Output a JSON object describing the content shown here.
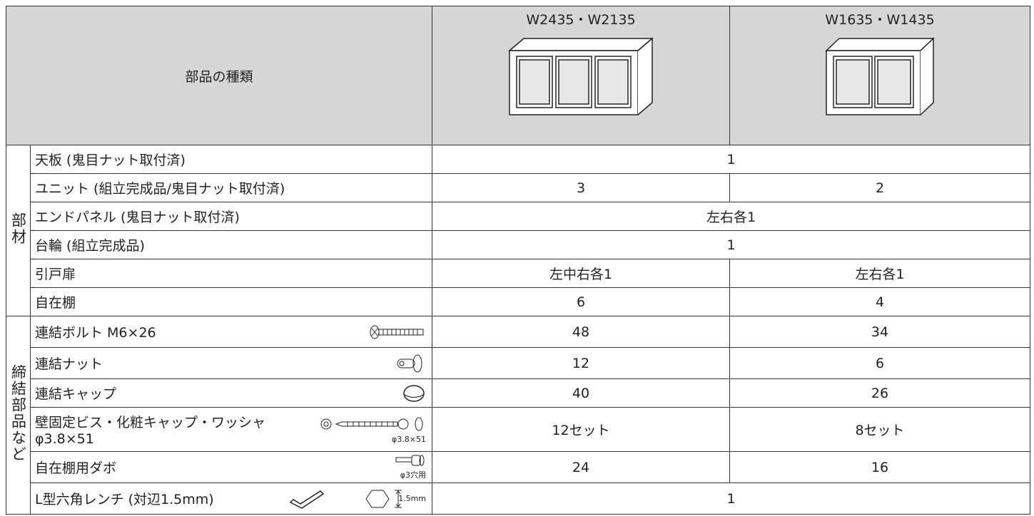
{
  "header": {
    "label": "部品の種類",
    "models": [
      "W2435・W2135",
      "W1635・W1435"
    ]
  },
  "groups": [
    {
      "label": "部材",
      "rows": [
        {
          "name": "天板 (鬼目ナット取付済)",
          "values": [
            1
          ]
        },
        {
          "name": "ユニット (組立完成品/鬼目ナット取付済)",
          "values": [
            3,
            2
          ]
        },
        {
          "name": "エンドパネル (鬼目ナット取付済)",
          "values": [
            "左右各1"
          ]
        },
        {
          "name": "台輪 (組立完成品)",
          "values": [
            1
          ]
        },
        {
          "name": "引戸扉",
          "values": [
            "左中右各1",
            "左右各1"
          ]
        },
        {
          "name": "自在棚",
          "values": [
            6,
            4
          ]
        }
      ]
    },
    {
      "label": "締結部品など",
      "rows": [
        {
          "name": "連結ボルト M6×26",
          "values": [
            48,
            34
          ]
        },
        {
          "name": "連結ナット",
          "values": [
            12,
            6
          ]
        },
        {
          "name": "連結キャップ",
          "values": [
            40,
            26
          ]
        },
        {
          "name": "壁固定ビス・化粧キャップ・ワッシャ",
          "name2": "φ3.8×51",
          "icon_label": "φ3.8×51",
          "values": [
            "12セット",
            "8セット"
          ]
        },
        {
          "name": "自在棚用ダボ",
          "icon_label": "φ3穴用",
          "values": [
            24,
            16
          ]
        },
        {
          "name": "L型六角レンチ (対辺1.5mm)",
          "icon_label": "1.5mm",
          "values": [
            1
          ]
        }
      ]
    }
  ]
}
